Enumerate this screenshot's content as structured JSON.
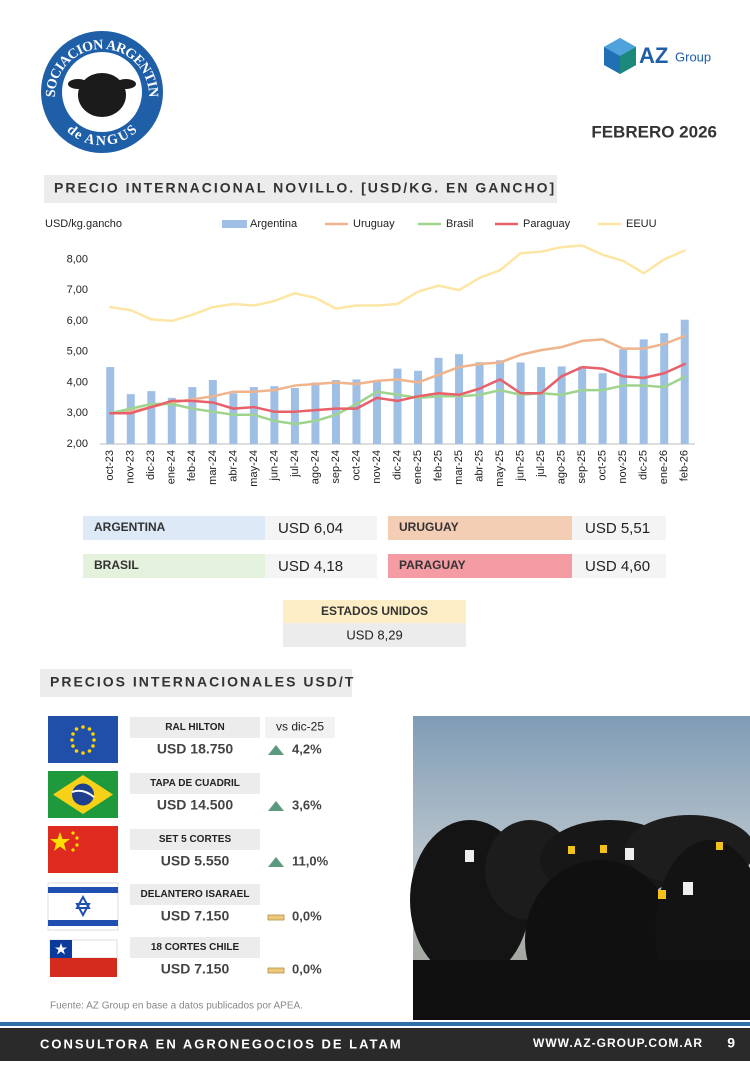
{
  "header": {
    "logo_top": "ASOCIACION ARGENTINA",
    "logo_bottom": "de ANGUS",
    "brand": "AZ",
    "brand_sub": "Group",
    "date": "FEBRERO 2026"
  },
  "section1_title": "PRECIO INTERNACIONAL NOVILLO. [USD/KG. EN GANCHO]",
  "chart_data": {
    "type": "combo",
    "y_label": "USD/kg.gancho",
    "categories": [
      "oct-23",
      "nov-23",
      "dic-23",
      "ene-24",
      "feb-24",
      "mar-24",
      "abr-24",
      "may-24",
      "jun-24",
      "jul-24",
      "ago-24",
      "sep-24",
      "oct-24",
      "nov-24",
      "dic-24",
      "ene-25",
      "feb-25",
      "mar-25",
      "abr-25",
      "may-25",
      "jun-25",
      "jul-25",
      "ago-25",
      "sep-25",
      "oct-25",
      "nov-25",
      "dic-25",
      "ene-26",
      "feb-26"
    ],
    "series": [
      {
        "name": "Argentina",
        "type": "bar",
        "color": "#9fbfe5",
        "values": [
          4.5,
          3.62,
          3.72,
          3.5,
          3.85,
          4.08,
          3.65,
          3.85,
          3.88,
          3.82,
          4.0,
          4.08,
          4.1,
          4.08,
          4.45,
          4.38,
          4.8,
          4.92,
          4.66,
          4.72,
          4.65,
          4.5,
          4.52,
          4.52,
          4.3,
          5.08,
          5.4,
          5.6,
          6.04
        ]
      },
      {
        "name": "Uruguay",
        "type": "line",
        "color": "#efb48c",
        "values": [
          3.0,
          3.05,
          3.2,
          3.35,
          3.45,
          3.55,
          3.7,
          3.7,
          3.75,
          3.9,
          3.95,
          4.0,
          3.95,
          4.05,
          4.1,
          4.0,
          4.25,
          4.5,
          4.6,
          4.65,
          4.9,
          5.05,
          5.15,
          5.35,
          5.4,
          5.1,
          5.1,
          5.25,
          5.51
        ]
      },
      {
        "name": "Brasil",
        "type": "line",
        "color": "#9fd48e",
        "values": [
          3.0,
          3.15,
          3.3,
          3.3,
          3.15,
          3.05,
          2.95,
          2.95,
          2.75,
          2.65,
          2.75,
          2.95,
          3.3,
          3.7,
          3.6,
          3.5,
          3.55,
          3.55,
          3.6,
          3.75,
          3.6,
          3.65,
          3.6,
          3.75,
          3.75,
          3.9,
          3.9,
          3.85,
          4.18
        ]
      },
      {
        "name": "Paraguay",
        "type": "line",
        "color": "#e8606a",
        "values": [
          3.0,
          3.0,
          3.2,
          3.4,
          3.4,
          3.35,
          3.15,
          3.2,
          3.05,
          3.05,
          3.1,
          3.15,
          3.15,
          3.5,
          3.4,
          3.55,
          3.65,
          3.6,
          3.8,
          4.1,
          3.65,
          3.65,
          4.2,
          4.5,
          4.45,
          4.2,
          4.15,
          4.3,
          4.6
        ]
      },
      {
        "name": "EEUU",
        "type": "line",
        "color": "#fde6a3",
        "values": [
          6.45,
          6.35,
          6.05,
          6.0,
          6.2,
          6.45,
          6.55,
          6.5,
          6.65,
          6.9,
          6.75,
          6.4,
          6.5,
          6.5,
          6.55,
          6.95,
          7.15,
          7.0,
          7.4,
          7.65,
          8.2,
          8.25,
          8.4,
          8.45,
          8.15,
          7.95,
          7.55,
          8.0,
          8.29
        ]
      }
    ],
    "ylim": [
      2,
      8.5
    ],
    "yticks": [
      {
        "value": 2,
        "label": "2,00"
      },
      {
        "value": 3,
        "label": "3,00"
      },
      {
        "value": 4,
        "label": "4,00"
      },
      {
        "value": 5,
        "label": "5,00"
      },
      {
        "value": 6,
        "label": "6,00"
      },
      {
        "value": 7,
        "label": "7,00"
      },
      {
        "value": 8,
        "label": "8,00"
      }
    ],
    "grid": false,
    "legend": "top"
  },
  "summary": [
    {
      "label": "ARGENTINA",
      "value": "USD 6,04",
      "color": "#dde9f6"
    },
    {
      "label": "URUGUAY",
      "value": "USD 5,51",
      "color": "#f4cdb5"
    },
    {
      "label": "BRASIL",
      "value": "USD 4,18",
      "color": "#e3f1dd"
    },
    {
      "label": "PARAGUAY",
      "value": "USD 4,60",
      "color": "#f59ba3"
    },
    {
      "label": "ESTADOS UNIDOS",
      "value": "USD 8,29",
      "color": "#fdeec6"
    }
  ],
  "section2_title": "PRECIOS INTERNACIONALES USD/T",
  "prices": {
    "header": "vs dic-25",
    "rows": [
      {
        "name": "RAL HILTON",
        "price": "USD 18.750",
        "change": "4,2%",
        "trend": "up"
      },
      {
        "name": "TAPA DE CUADRIL",
        "price": "USD 14.500",
        "change": "3,6%",
        "trend": "up"
      },
      {
        "name": "SET 5 CORTES",
        "price": "USD 5.550",
        "change": "11,0%",
        "trend": "up"
      },
      {
        "name": "DELANTERO ISARAEL",
        "price": "USD 7.150",
        "change": "0,0%",
        "trend": "flat"
      },
      {
        "name": "18 CORTES CHILE",
        "price": "USD 7.150",
        "change": "0,0%",
        "trend": "flat"
      }
    ]
  },
  "source": "Fuente: AZ Group en base a datos publicados por APEA.",
  "footer": {
    "tagline": "CONSULTORA EN AGRONEGOCIOS DE LATAM",
    "url": "WWW.AZ-GROUP.COM.AR",
    "page": 9
  }
}
